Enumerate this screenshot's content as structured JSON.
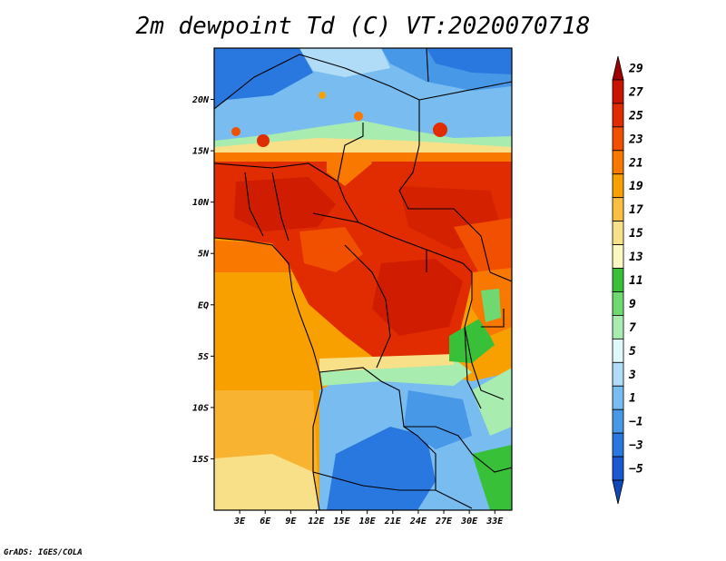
{
  "title": "2m dewpoint Td (C) VT:2020070718",
  "footer": "GrADS: IGES/COLA",
  "map": {
    "region": "Central Africa",
    "lon_range": [
      0,
      35
    ],
    "lat_range": [
      -20,
      25
    ],
    "lat_ticks": [
      {
        "value": 20,
        "label": "20N"
      },
      {
        "value": 15,
        "label": "15N"
      },
      {
        "value": 10,
        "label": "10N"
      },
      {
        "value": 5,
        "label": "5N"
      },
      {
        "value": 0,
        "label": "EQ"
      },
      {
        "value": -5,
        "label": "5S"
      },
      {
        "value": -10,
        "label": "10S"
      },
      {
        "value": -15,
        "label": "15S"
      }
    ],
    "lon_ticks": [
      {
        "value": 3,
        "label": "3E"
      },
      {
        "value": 6,
        "label": "6E"
      },
      {
        "value": 9,
        "label": "9E"
      },
      {
        "value": 12,
        "label": "12E"
      },
      {
        "value": 15,
        "label": "15E"
      },
      {
        "value": 18,
        "label": "18E"
      },
      {
        "value": 21,
        "label": "21E"
      },
      {
        "value": 24,
        "label": "24E"
      },
      {
        "value": 27,
        "label": "27E"
      },
      {
        "value": 30,
        "label": "30E"
      },
      {
        "value": 33,
        "label": "33E"
      }
    ]
  },
  "colorbar": {
    "labels": [
      "29",
      "27",
      "25",
      "23",
      "21",
      "19",
      "17",
      "15",
      "13",
      "11",
      "9",
      "7",
      "5",
      "3",
      "1",
      "−1",
      "−3",
      "−5"
    ],
    "colors": [
      "#a00000",
      "#c81400",
      "#e02c00",
      "#f05000",
      "#f87800",
      "#f8a000",
      "#f8c040",
      "#f8e088",
      "#f8f8c0",
      "#38c038",
      "#70d870",
      "#a8ecb0",
      "#e0f8f8",
      "#b0dcf8",
      "#78bcf0",
      "#4898e8",
      "#2878e0",
      "#1858d0",
      "#1048b8"
    ]
  }
}
